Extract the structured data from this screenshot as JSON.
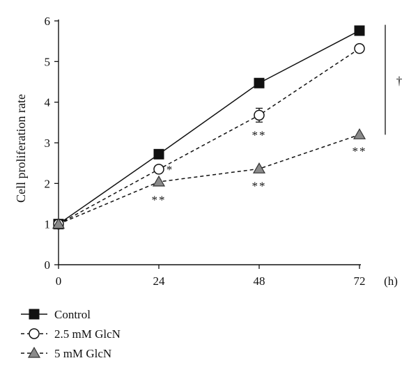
{
  "chart_data": {
    "type": "line",
    "title": "",
    "xlabel": "",
    "x_unit": "(h)",
    "ylabel": "Cell proliferation rate",
    "x": [
      0,
      24,
      48,
      72
    ],
    "xticks": [
      "0",
      "24",
      "48",
      "72"
    ],
    "ylim": [
      0,
      6
    ],
    "yticks": [
      "0",
      "1",
      "2",
      "3",
      "4",
      "5",
      "6"
    ],
    "grid": false,
    "legend_position": "bottom-left",
    "series": [
      {
        "name": "Control",
        "values": [
          1.0,
          2.72,
          4.47,
          5.76
        ],
        "errors": [
          0,
          0,
          0,
          0
        ],
        "marker": "square",
        "dash": "solid",
        "color": "#111111"
      },
      {
        "name": "2.5 mM GlcN",
        "values": [
          1.0,
          2.35,
          3.68,
          5.32
        ],
        "errors": [
          0,
          0,
          0.17,
          0
        ],
        "marker": "circle",
        "dash": "dashed",
        "color": "#111111"
      },
      {
        "name": "5 mM GlcN",
        "values": [
          1.0,
          2.04,
          2.36,
          3.2
        ],
        "errors": [
          0,
          0,
          0,
          0
        ],
        "marker": "triangle",
        "dash": "dashed",
        "color": "#808080"
      }
    ],
    "annotations": [
      {
        "text": "*",
        "x": 24,
        "y": 2.35,
        "placement": "right"
      },
      {
        "text": "**",
        "x": 24,
        "y": 1.6,
        "placement": "below"
      },
      {
        "text": "**",
        "x": 48,
        "y": 3.2,
        "placement": "below"
      },
      {
        "text": "**",
        "x": 48,
        "y": 1.95,
        "placement": "below"
      },
      {
        "text": "**",
        "x": 72,
        "y": 2.8,
        "placement": "below"
      }
    ],
    "significance_bar": {
      "symbol": "†",
      "y_range": [
        3.2,
        5.8
      ]
    }
  }
}
